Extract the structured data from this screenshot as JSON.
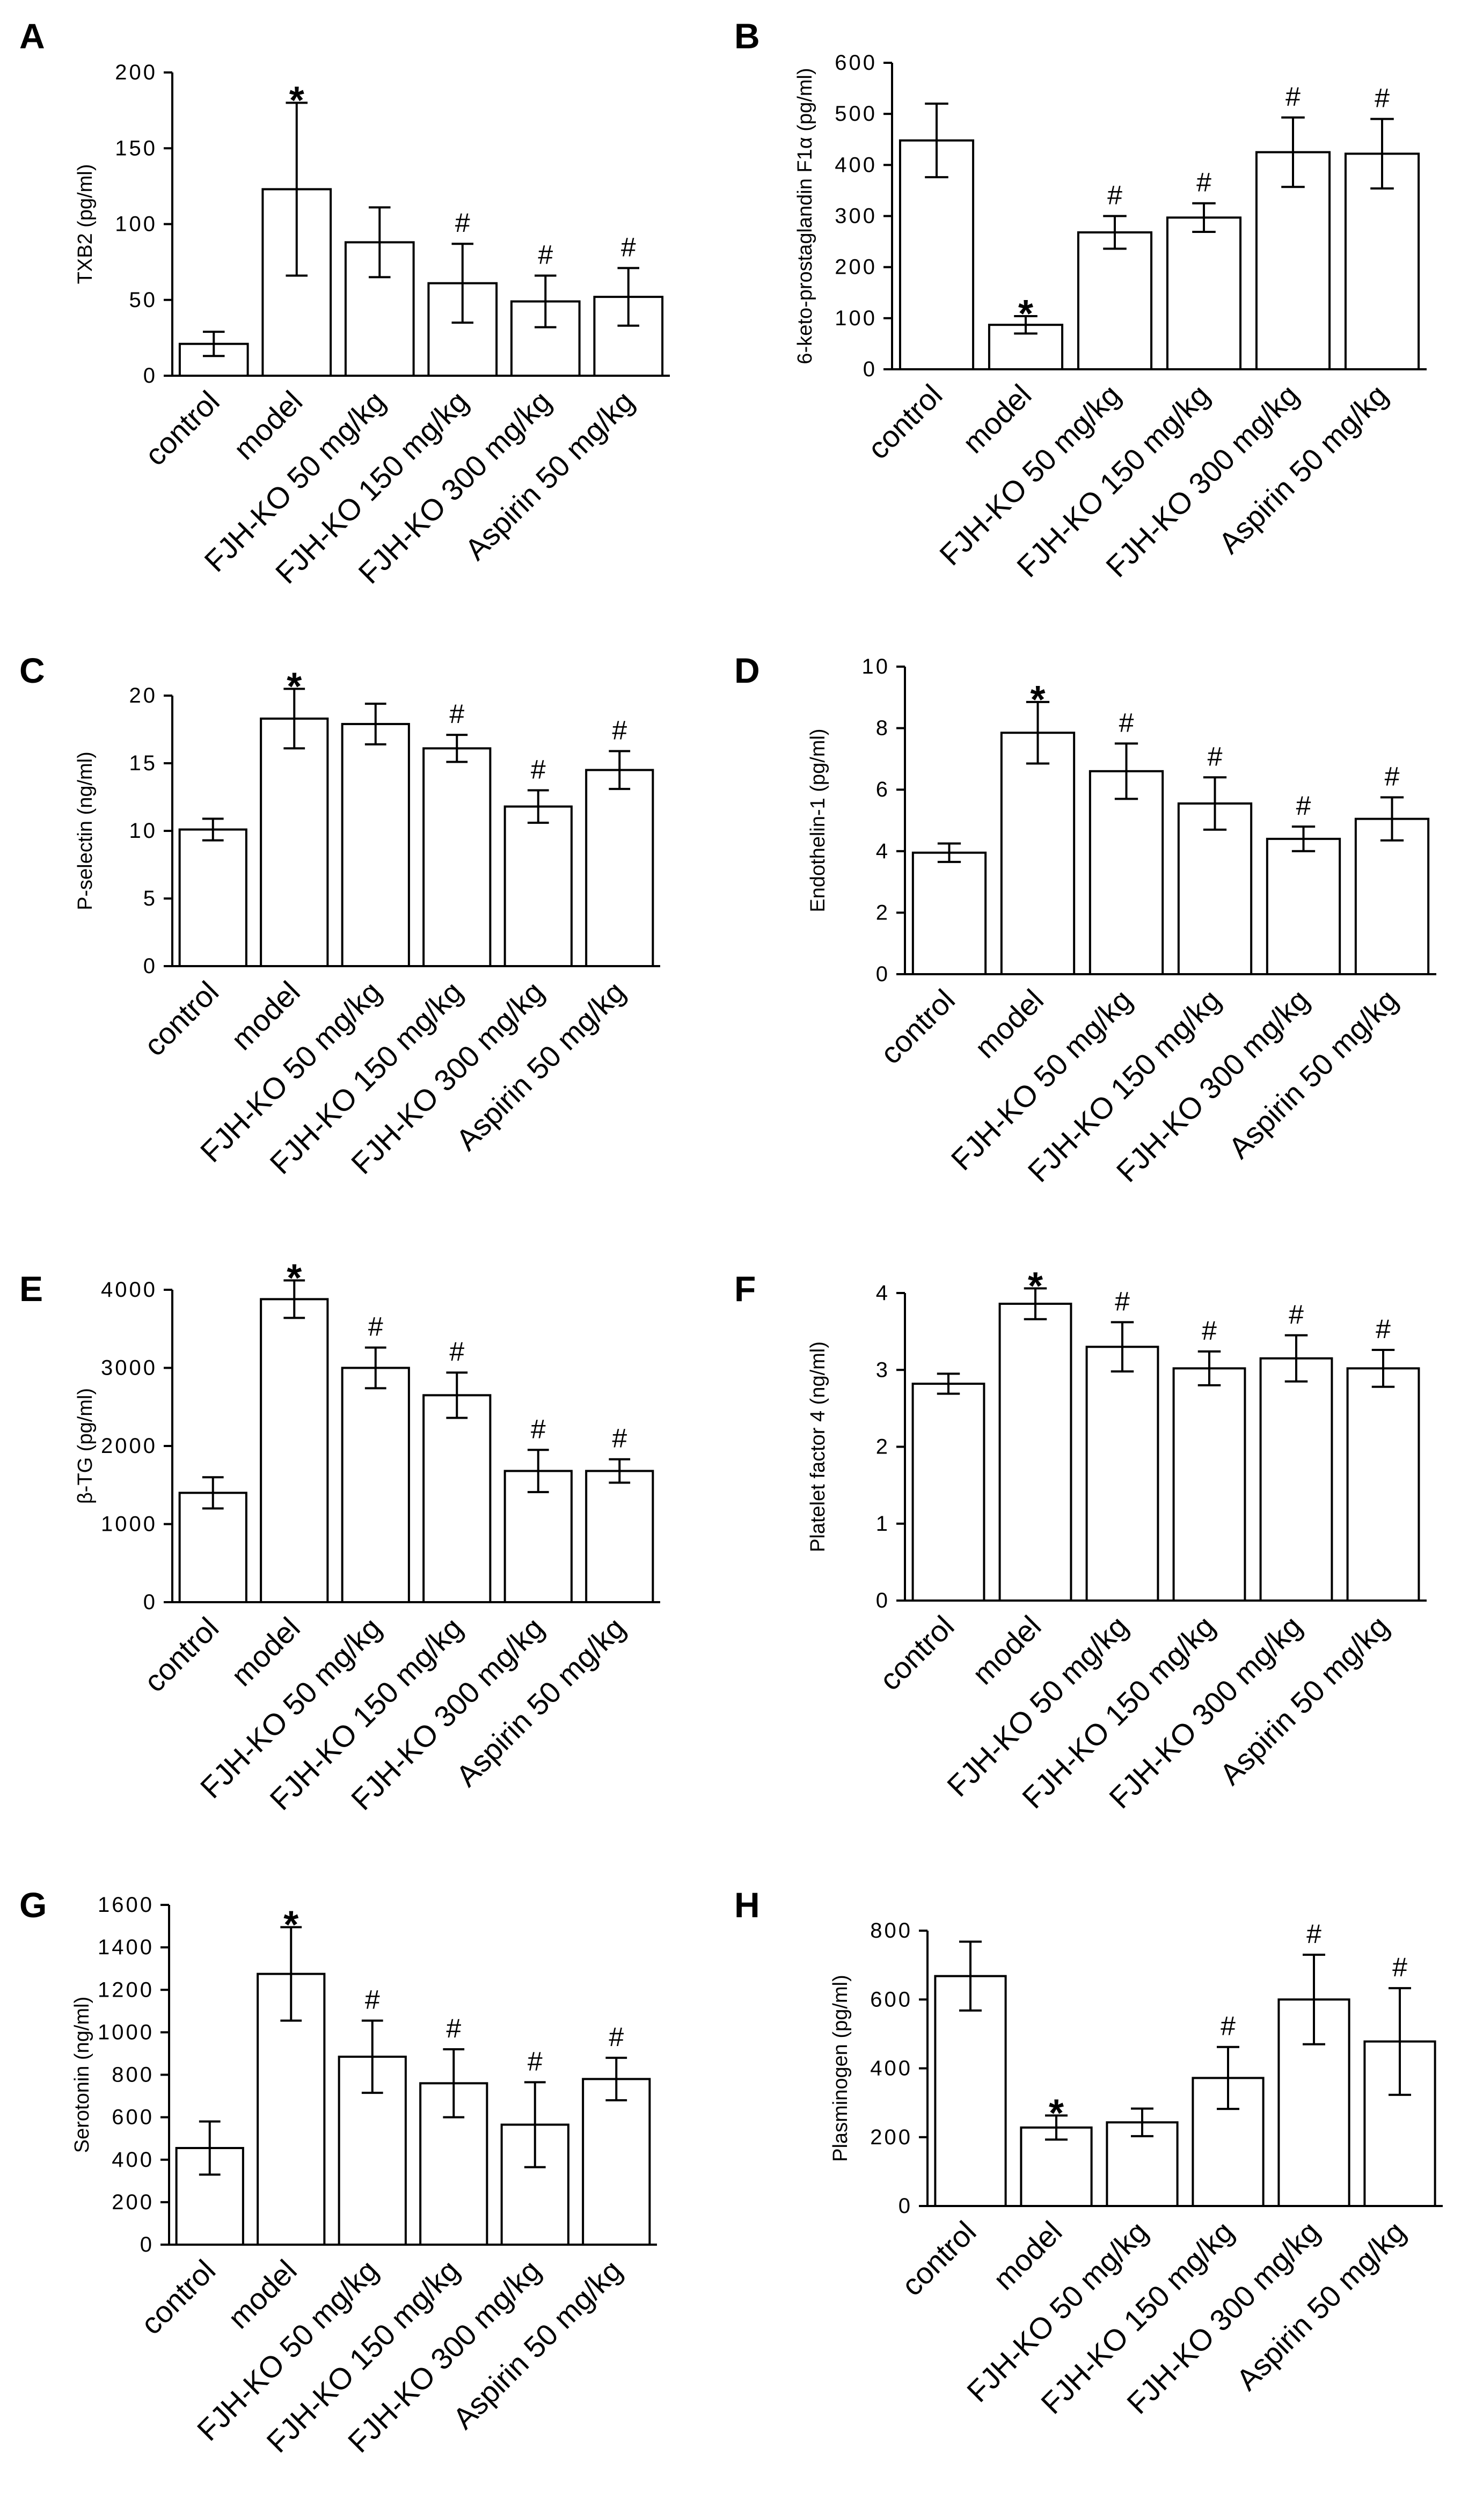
{
  "categories": [
    "control",
    "model",
    "FJH-KO 50 mg/kg",
    "FJH-KO 150 mg/kg",
    "FJH-KO 300 mg/kg",
    "Aspirin 50 mg/kg"
  ],
  "chart_data": [
    {
      "panel": "A",
      "type": "bar",
      "ylabel": "TXB2 (pg/ml)",
      "ylim": [
        0,
        200
      ],
      "yticks": [
        0,
        50,
        100,
        150,
        200
      ],
      "values": [
        21,
        123,
        88,
        61,
        49,
        52
      ],
      "errors": [
        8,
        57,
        23,
        26,
        17,
        19
      ],
      "marks": [
        "",
        "*",
        "",
        "#",
        "#",
        "#"
      ]
    },
    {
      "panel": "B",
      "type": "bar",
      "ylabel": "6-keto-prostaglandin F1α (pg/ml)",
      "ylim": [
        0,
        600
      ],
      "yticks": [
        0,
        100,
        200,
        300,
        400,
        500,
        600
      ],
      "values": [
        448,
        87,
        268,
        297,
        425,
        422
      ],
      "errors": [
        72,
        17,
        32,
        28,
        68,
        68
      ],
      "marks": [
        "",
        "*",
        "#",
        "#",
        "#",
        "#"
      ]
    },
    {
      "panel": "C",
      "type": "bar",
      "ylabel": "P-selectin (ng/ml)",
      "ylim": [
        0,
        20
      ],
      "yticks": [
        0,
        5,
        10,
        15,
        20
      ],
      "values": [
        10.1,
        18.3,
        17.9,
        16.1,
        11.8,
        14.5
      ],
      "errors": [
        0.8,
        2.2,
        1.5,
        1.0,
        1.2,
        1.4
      ],
      "marks": [
        "",
        "*",
        "",
        "#",
        "#",
        "#"
      ]
    },
    {
      "panel": "D",
      "type": "bar",
      "ylabel": "Endothelin-1 (pg/ml)",
      "ylim": [
        0,
        10
      ],
      "yticks": [
        0,
        2,
        4,
        6,
        8,
        10
      ],
      "values": [
        3.95,
        7.85,
        6.6,
        5.55,
        4.4,
        5.05
      ],
      "errors": [
        0.3,
        1.0,
        0.9,
        0.85,
        0.4,
        0.7
      ],
      "marks": [
        "",
        "*",
        "#",
        "#",
        "#",
        "#"
      ]
    },
    {
      "panel": "E",
      "type": "bar",
      "ylabel": "β-TG (pg/ml)",
      "ylim": [
        0,
        4000
      ],
      "yticks": [
        0,
        1000,
        2000,
        3000,
        4000
      ],
      "values": [
        1400,
        3880,
        3000,
        2650,
        1680,
        1680
      ],
      "errors": [
        200,
        240,
        260,
        290,
        270,
        150
      ],
      "marks": [
        "",
        "*",
        "#",
        "#",
        "#",
        "#"
      ]
    },
    {
      "panel": "F",
      "type": "bar",
      "ylabel": "Platelet factor 4 (ng/ml)",
      "ylim": [
        0,
        4
      ],
      "yticks": [
        0,
        1,
        2,
        3,
        4
      ],
      "values": [
        2.82,
        3.86,
        3.3,
        3.02,
        3.15,
        3.02
      ],
      "errors": [
        0.13,
        0.2,
        0.32,
        0.22,
        0.3,
        0.24
      ],
      "marks": [
        "",
        "*",
        "#",
        "#",
        "#",
        "#"
      ]
    },
    {
      "panel": "G",
      "type": "bar",
      "ylabel": "Serotonin (ng/ml)",
      "ylim": [
        0,
        1600
      ],
      "yticks": [
        0,
        200,
        400,
        600,
        800,
        1000,
        1200,
        1400,
        1600
      ],
      "values": [
        455,
        1275,
        885,
        760,
        565,
        780
      ],
      "errors": [
        125,
        220,
        170,
        160,
        200,
        100
      ],
      "marks": [
        "",
        "*",
        "#",
        "#",
        "#",
        "#"
      ]
    },
    {
      "panel": "H",
      "type": "bar",
      "ylabel": "Plasminogen (pg/ml)",
      "ylim": [
        0,
        800
      ],
      "yticks": [
        0,
        200,
        400,
        600,
        800
      ],
      "values": [
        668,
        228,
        243,
        372,
        600,
        478
      ],
      "errors": [
        100,
        35,
        40,
        90,
        130,
        155
      ],
      "marks": [
        "",
        "*",
        "",
        "#",
        "#",
        "#"
      ]
    }
  ]
}
